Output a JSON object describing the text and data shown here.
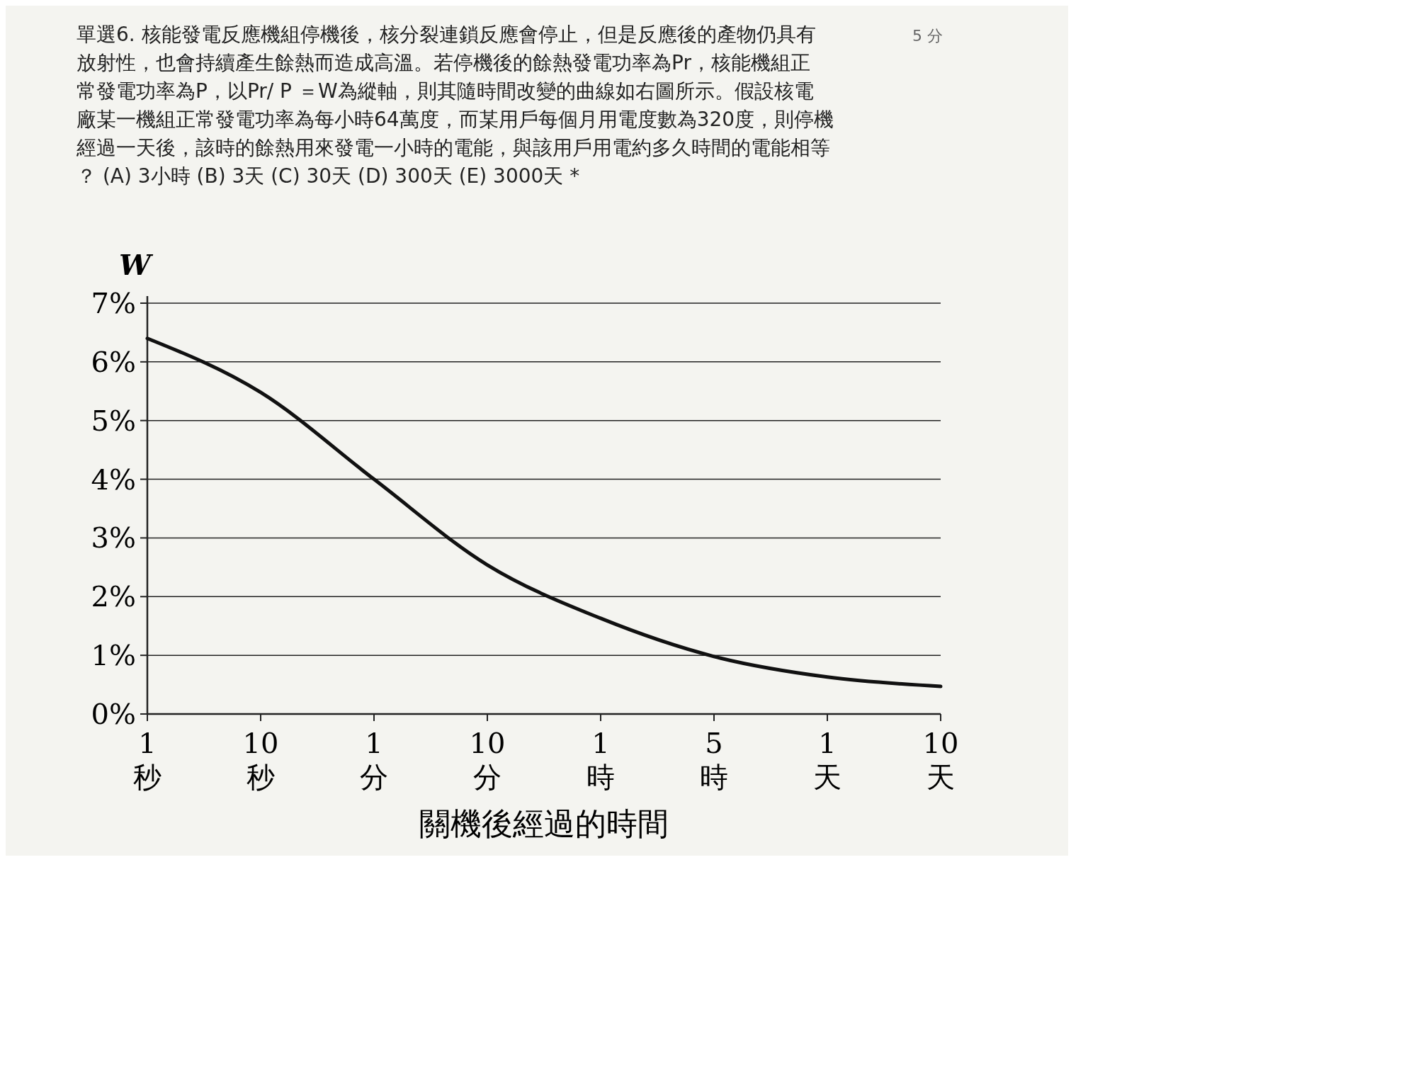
{
  "chart_data": {
    "type": "line",
    "title": "單選6. 核能發電反應機組停機後，核分裂連鎖反應會停止，但是反應後的產物仍具有放射性，也會持續產生餘熱而造成高溫。若停機後的餘熱發電功率為Pr，核能機組正常發電功率為P，以Pr/ P ＝W為縱軸，則其隨時間改變的曲線如右圖所示。假設核電廠某一機組正常發電功率為每小時64萬度，而某用戶每個月用電度數為320度，則停機經過一天後，該時的餘熱用來發電一小時的電能，與該用戶用電約多久時間的電能相等？ (A) 3小時 (B) 3天 (C) 30天 (D) 300天 (E) 3000天 *",
    "annotations": [
      "5 分"
    ],
    "xlabel": "關機後經過的時間",
    "ylabel": "W",
    "categories": [
      "1 秒",
      "10 秒",
      "1 分",
      "10 分",
      "1 時",
      "5 時",
      "1 天",
      "10 天"
    ],
    "ylim": [
      0,
      7
    ],
    "yticks": [
      {
        "value": 0,
        "label": "0%"
      },
      {
        "value": 1,
        "label": "1%"
      },
      {
        "value": 2,
        "label": "2%"
      },
      {
        "value": 3,
        "label": "3%"
      },
      {
        "value": 4,
        "label": "4%"
      },
      {
        "value": 5,
        "label": "5%"
      },
      {
        "value": 6,
        "label": "6%"
      },
      {
        "value": 7,
        "label": "7%"
      }
    ],
    "grid": "y",
    "series": [
      {
        "color": "#111111",
        "values": [
          6.4,
          5.48,
          4.0,
          2.54,
          1.63,
          0.98,
          0.63,
          0.47
        ]
      }
    ]
  }
}
